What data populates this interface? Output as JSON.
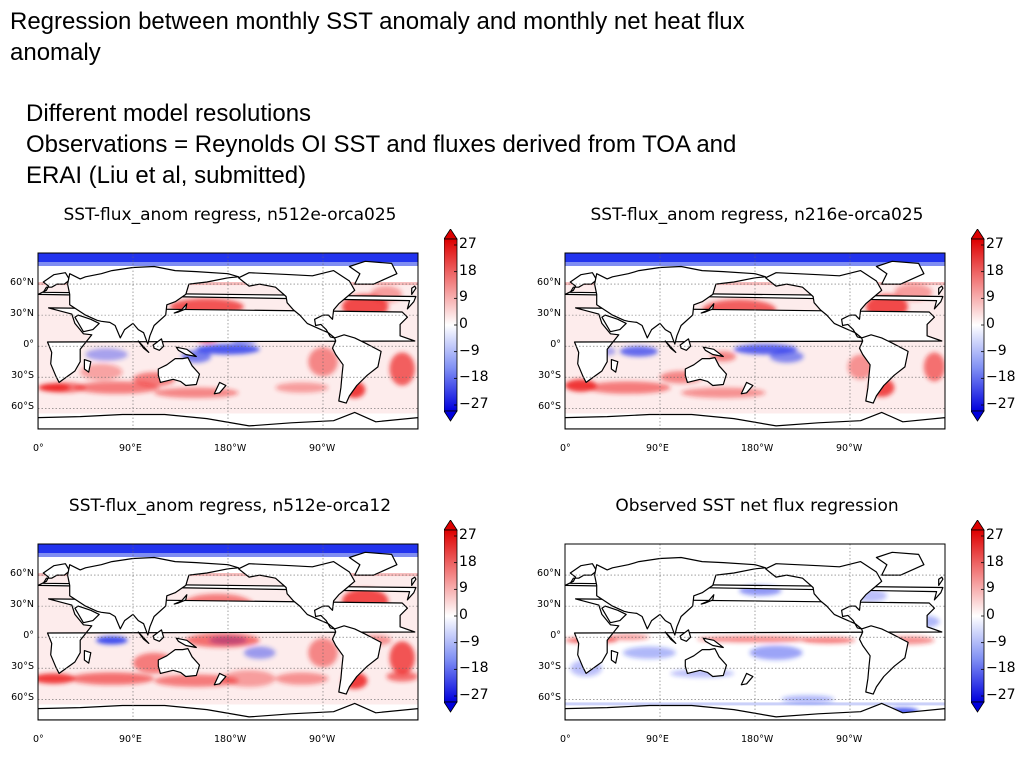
{
  "slide": {
    "title": "Regression between monthly SST anomaly and monthly net heat flux anomaly",
    "notes": [
      "Different model resolutions",
      "Observations = Reynolds OI SST and fluxes derived from TOA and",
      "ERAI (Liu et al, submitted)"
    ]
  },
  "chart_data": [
    {
      "type": "heatmap",
      "title": "SST-flux_anom regress, n512e-orca025",
      "lat_ticks": [
        "60°N",
        "30°N",
        "0°",
        "30°S",
        "60°S"
      ],
      "lat_values": [
        60,
        30,
        0,
        -30,
        -60
      ],
      "lon_ticks": [
        "0°",
        "90°E",
        "180°W",
        "90°W"
      ],
      "lon_values": [
        0,
        90,
        180,
        270
      ],
      "colorbar_ticks": [
        "27",
        "18",
        "9",
        "0",
        "−9",
        "−18",
        "−27"
      ],
      "colorbar_values": [
        27,
        18,
        9,
        0,
        -9,
        -18,
        -27
      ],
      "vmin": -27,
      "vmax": 27,
      "colormap": "bwr"
    },
    {
      "type": "heatmap",
      "title": "SST-flux_anom regress, n216e-orca025",
      "lat_ticks": [
        "60°N",
        "30°N",
        "0°",
        "30°S",
        "60°S"
      ],
      "lat_values": [
        60,
        30,
        0,
        -30,
        -60
      ],
      "lon_ticks": [
        "0°",
        "90°E",
        "180°W",
        "90°W"
      ],
      "lon_values": [
        0,
        90,
        180,
        270
      ],
      "colorbar_ticks": [
        "27",
        "18",
        "9",
        "0",
        "−9",
        "−18",
        "−27"
      ],
      "colorbar_values": [
        27,
        18,
        9,
        0,
        -9,
        -18,
        -27
      ],
      "vmin": -27,
      "vmax": 27,
      "colormap": "bwr"
    },
    {
      "type": "heatmap",
      "title": "SST-flux_anom regress, n512e-orca12",
      "lat_ticks": [
        "60°N",
        "30°N",
        "0°",
        "30°S",
        "60°S"
      ],
      "lat_values": [
        60,
        30,
        0,
        -30,
        -60
      ],
      "lon_ticks": [
        "0°",
        "90°E",
        "180°W",
        "90°W"
      ],
      "lon_values": [
        0,
        90,
        180,
        270
      ],
      "colorbar_ticks": [
        "27",
        "18",
        "9",
        "0",
        "−9",
        "−18",
        "−27"
      ],
      "colorbar_values": [
        27,
        18,
        9,
        0,
        -9,
        -18,
        -27
      ],
      "vmin": -27,
      "vmax": 27,
      "colormap": "bwr"
    },
    {
      "type": "heatmap",
      "title": "Observed SST net flux regression",
      "lat_ticks": [
        "60°N",
        "30°N",
        "0°",
        "30°S",
        "60°S"
      ],
      "lat_values": [
        60,
        30,
        0,
        -30,
        -60
      ],
      "lon_ticks": [
        "0°",
        "90°E",
        "180°W",
        "90°W"
      ],
      "lon_values": [
        0,
        90,
        180,
        270
      ],
      "colorbar_ticks": [
        "27",
        "18",
        "9",
        "0",
        "−9",
        "−18",
        "−27"
      ],
      "colorbar_values": [
        27,
        18,
        9,
        0,
        -9,
        -18,
        -27
      ],
      "vmin": -27,
      "vmax": 27,
      "colormap": "bwr"
    }
  ],
  "colors": {
    "positive": "#ee2222",
    "negative": "#2233ee",
    "neutral": "#ffffff",
    "coast": "#000000",
    "grid": "#666666"
  }
}
